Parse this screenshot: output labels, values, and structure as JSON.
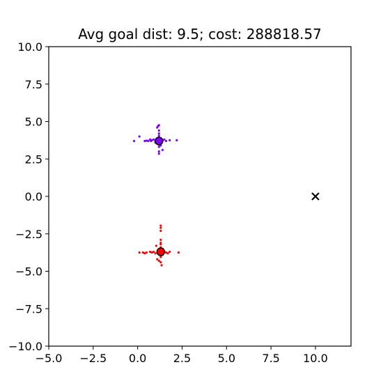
{
  "chart_data": {
    "type": "scatter",
    "title": "Avg goal dist: 9.5; cost: 288818.57",
    "xlabel": "",
    "ylabel": "",
    "xlim": [
      -5.0,
      12.0
    ],
    "ylim": [
      -10.0,
      10.0
    ],
    "x_ticks": [
      -5.0,
      -2.5,
      0.0,
      2.5,
      5.0,
      7.5,
      10.0
    ],
    "y_ticks": [
      -10.0,
      -7.5,
      -5.0,
      -2.5,
      0.0,
      2.5,
      5.0,
      7.5,
      10.0
    ],
    "x_tick_labels": [
      "−5.0",
      "−2.5",
      "0.0",
      "2.5",
      "5.0",
      "7.5",
      "10.0"
    ],
    "y_tick_labels": [
      "−10.0",
      "−7.5",
      "−5.0",
      "−2.5",
      "0.0",
      "2.5",
      "5.0",
      "7.5",
      "10.0"
    ],
    "grid": false,
    "goal": {
      "x": 10.0,
      "y": 0.0,
      "marker": "x",
      "color": "#000000"
    },
    "series": [
      {
        "color": "#7f00ff",
        "center": {
          "x": 1.2,
          "y": 3.7
        },
        "points": [
          [
            -0.2,
            3.7
          ],
          [
            0.1,
            4.0
          ],
          [
            0.4,
            3.7
          ],
          [
            0.5,
            3.72
          ],
          [
            0.6,
            3.7
          ],
          [
            0.7,
            3.8
          ],
          [
            0.75,
            3.7
          ],
          [
            0.8,
            3.75
          ],
          [
            0.9,
            3.8
          ],
          [
            1.0,
            3.7
          ],
          [
            1.05,
            3.65
          ],
          [
            1.1,
            4.6
          ],
          [
            1.15,
            4.7
          ],
          [
            1.2,
            4.75
          ],
          [
            1.2,
            4.4
          ],
          [
            1.2,
            4.2
          ],
          [
            1.2,
            4.05
          ],
          [
            1.2,
            3.95
          ],
          [
            1.2,
            3.45
          ],
          [
            1.2,
            3.3
          ],
          [
            1.2,
            3.0
          ],
          [
            1.2,
            2.85
          ],
          [
            1.3,
            3.4
          ],
          [
            1.4,
            3.75
          ],
          [
            1.5,
            3.8
          ],
          [
            1.6,
            3.7
          ],
          [
            1.8,
            3.75
          ],
          [
            2.2,
            3.75
          ],
          [
            1.4,
            3.1
          ],
          [
            1.0,
            3.6
          ]
        ]
      },
      {
        "color": "#ff0000",
        "center": {
          "x": 1.3,
          "y": -3.7
        },
        "points": [
          [
            0.1,
            -3.75
          ],
          [
            0.3,
            -3.75
          ],
          [
            0.4,
            -3.8
          ],
          [
            0.5,
            -3.75
          ],
          [
            0.7,
            -3.7
          ],
          [
            0.8,
            -3.75
          ],
          [
            0.9,
            -3.7
          ],
          [
            1.0,
            -3.8
          ],
          [
            1.05,
            -3.3
          ],
          [
            1.1,
            -4.2
          ],
          [
            1.2,
            -4.3
          ],
          [
            1.3,
            -1.95
          ],
          [
            1.3,
            -2.1
          ],
          [
            1.3,
            -2.3
          ],
          [
            1.3,
            -2.9
          ],
          [
            1.3,
            -3.1
          ],
          [
            1.3,
            -3.2
          ],
          [
            1.3,
            -3.4
          ],
          [
            1.3,
            -4.05
          ],
          [
            1.3,
            -4.4
          ],
          [
            1.35,
            -4.6
          ],
          [
            1.4,
            -3.5
          ],
          [
            1.5,
            -3.7
          ],
          [
            1.6,
            -3.75
          ],
          [
            1.7,
            -3.8
          ],
          [
            1.8,
            -3.7
          ],
          [
            2.3,
            -3.75
          ],
          [
            1.25,
            -3.6
          ],
          [
            1.4,
            -3.9
          ],
          [
            1.2,
            -3.85
          ]
        ]
      }
    ]
  }
}
